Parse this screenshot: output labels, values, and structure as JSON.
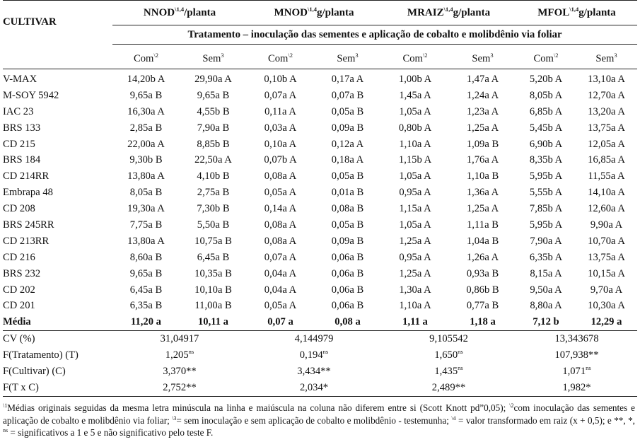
{
  "header": {
    "cultivar_label": "CULTIVAR",
    "variables": [
      {
        "name": "NNOD",
        "sup": "\\1,4",
        "unit": "/planta"
      },
      {
        "name": "MNOD",
        "sup": "\\1,4",
        "unit": "g/planta"
      },
      {
        "name": "MRAIZ",
        "sup": "\\1,4",
        "unit": "g/planta"
      },
      {
        "name": "MFOL",
        "sup": "\\1,4",
        "unit": "g/planta"
      }
    ],
    "tratamento": "Tratamento – inoculação das sementes e aplicação de cobalto e molibdênio via foliar",
    "subcols": [
      {
        "label": "Com",
        "sup": "\\2"
      },
      {
        "label": "Sem",
        "sup": "3"
      }
    ]
  },
  "rows": [
    {
      "cultivar": "V-MAX",
      "values": [
        "14,20b A",
        "29,90a A",
        "0,10b A",
        "0,17a A",
        "1,00b A",
        "1,47a A",
        "5,20b A",
        "13,10a A"
      ]
    },
    {
      "cultivar": "M-SOY 5942",
      "values": [
        "9,65a B",
        "9,65a B",
        "0,07a A",
        "0,07a B",
        "1,45a A",
        "1,24a A",
        "8,05b A",
        "12,70a A"
      ]
    },
    {
      "cultivar": "IAC 23",
      "values": [
        "16,30a A",
        "4,55b B",
        "0,11a A",
        "0,05a B",
        "1,05a A",
        "1,23a A",
        "6,85b A",
        "13,20a A"
      ]
    },
    {
      "cultivar": "BRS 133",
      "values": [
        "2,85a B",
        "7,90a B",
        "0,03a A",
        "0,09a B",
        "0,80b A",
        "1,25a A",
        "5,45b A",
        "13,75a A"
      ]
    },
    {
      "cultivar": "CD 215",
      "values": [
        "22,00a A",
        "8,85b B",
        "0,10a A",
        "0,12a A",
        "1,10a A",
        "1,09a B",
        "6,90b A",
        "12,05a A"
      ]
    },
    {
      "cultivar": "BRS 184",
      "values": [
        "9,30b B",
        "22,50a A",
        "0,07b A",
        "0,18a A",
        "1,15b A",
        "1,76a A",
        "8,35b A",
        "16,85a A"
      ]
    },
    {
      "cultivar": "CD 214RR",
      "values": [
        "13,80a A",
        "4,10b B",
        "0,08a A",
        "0,05a B",
        "1,05a A",
        "1,10a B",
        "5,95b A",
        "11,55a A"
      ]
    },
    {
      "cultivar": "Embrapa 48",
      "values": [
        "8,05a B",
        "2,75a B",
        "0,05a A",
        "0,01a B",
        "0,95a A",
        "1,36a A",
        "5,55b A",
        "14,10a A"
      ]
    },
    {
      "cultivar": "CD 208",
      "values": [
        "19,30a A",
        "7,30b B",
        "0,14a A",
        "0,08a B",
        "1,15a A",
        "1,25a A",
        "7,85b A",
        "12,60a A"
      ]
    },
    {
      "cultivar": "BRS 245RR",
      "values": [
        "7,75a B",
        "5,50a B",
        "0,08a A",
        "0,05a B",
        "1,05a A",
        "1,11a B",
        "5,95b A",
        "9,90a A"
      ]
    },
    {
      "cultivar": "CD 213RR",
      "values": [
        "13,80a A",
        "10,75a B",
        "0,08a A",
        "0,09a B",
        "1,25a A",
        "1,04a B",
        "7,90a A",
        "10,70a A"
      ]
    },
    {
      "cultivar": "CD 216",
      "values": [
        "8,60a B",
        "6,45a B",
        "0,07a A",
        "0,06a B",
        "0,95a A",
        "1,26a A",
        "6,35b A",
        "13,75a A"
      ]
    },
    {
      "cultivar": "BRS 232",
      "values": [
        "9,65a B",
        "10,35a B",
        "0,04a A",
        "0,06a B",
        "1,25a A",
        "0,93a B",
        "8,15a A",
        "10,15a A"
      ]
    },
    {
      "cultivar": "CD 202",
      "values": [
        "6,45a B",
        "10,10a B",
        "0,04a A",
        "0,06a B",
        "1,30a A",
        "0,86b B",
        "9,50a A",
        "9,70a A"
      ]
    },
    {
      "cultivar": "CD 201",
      "values": [
        "6,35a B",
        "11,00a B",
        "0,05a A",
        "0,06a B",
        "1,10a A",
        "0,77a B",
        "8,80a A",
        "10,30a A"
      ]
    }
  ],
  "media": {
    "label": "Média",
    "values": [
      "11,20 a",
      "10,11 a",
      "0,07 a",
      "0,08 a",
      "1,11 a",
      "1,18 a",
      "7,12 b",
      "12,29 a"
    ]
  },
  "stats": [
    {
      "label": "CV (%)",
      "values": [
        {
          "v": "31,04917",
          "s": ""
        },
        {
          "v": "4,144979",
          "s": ""
        },
        {
          "v": "9,105542",
          "s": ""
        },
        {
          "v": "13,343678",
          "s": ""
        }
      ]
    },
    {
      "label": "F(Tratamento)  (T)",
      "values": [
        {
          "v": "1,205",
          "s": "ns"
        },
        {
          "v": "0,194",
          "s": "ns"
        },
        {
          "v": "1,650",
          "s": "ns"
        },
        {
          "v": "107,938**",
          "s": ""
        }
      ]
    },
    {
      "label": "F(Cultivar) (C)",
      "values": [
        {
          "v": "3,370**",
          "s": ""
        },
        {
          "v": "3,434**",
          "s": ""
        },
        {
          "v": "1,435",
          "s": "ns"
        },
        {
          "v": "1,071",
          "s": "ns"
        }
      ]
    },
    {
      "label": "F(T x C)",
      "values": [
        {
          "v": "2,752**",
          "s": ""
        },
        {
          "v": "2,034*",
          "s": ""
        },
        {
          "v": "2,489**",
          "s": ""
        },
        {
          "v": "1,982*",
          "s": ""
        }
      ]
    }
  ],
  "footnote": {
    "s1": "\\1",
    "t1": "Médias originais seguidas da mesma letra minúscula na linha e maiúscula na coluna não diferem entre si (Scott Knott pd”0,05); ",
    "s2": "\\2",
    "t2": "com inoculação das sementes e aplicação de cobalto e molibdênio via foliar; ",
    "s3": "\\3",
    "t3": "= sem inoculação e sem aplicação de cobalto e molibdênio - testemunha; ",
    "s4": "\\4",
    "t4": " = valor transformado em raiz (x + 0,5); e **, *, ",
    "s5": "ns",
    "t5": " = significativos a 1 e 5 e não significativo pelo teste F."
  }
}
